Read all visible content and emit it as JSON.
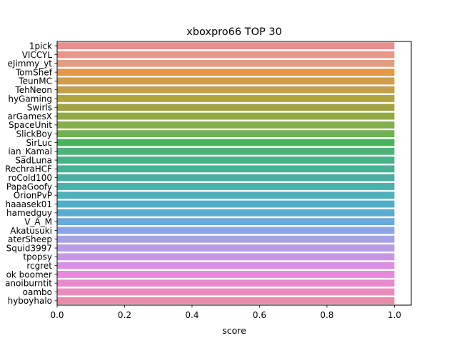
{
  "chart_data": {
    "type": "bar",
    "orientation": "horizontal",
    "title": "xboxpro66 TOP 30",
    "xlabel": "score",
    "ylabel": "",
    "xlim": [
      0,
      1.05
    ],
    "xticks": [
      "0.0",
      "0.2",
      "0.4",
      "0.6",
      "0.8",
      "1.0"
    ],
    "grid": false,
    "categories": [
      "1pick",
      "VICCYL",
      "eJimmy_yt",
      "TomShef",
      "TeunMC",
      "TehNeon",
      "hyGaming",
      "Swirls",
      "arGamesX",
      "SpaceUnit",
      "SlickBoy",
      "SirLuc",
      "ian_Kamal",
      "SadLuna",
      "RechraHCF",
      "roCold100",
      "PapaGoofy",
      "OrionPvP",
      "haaasek01",
      "hamedguy",
      "V_A_M",
      "Akatusuki",
      "aterSheep",
      "Squid3997",
      "tpopsy",
      "rcgret",
      "ok boomer",
      "anoiburntit",
      "oambo",
      "hyboyhalo"
    ],
    "values": [
      1,
      1,
      1,
      1,
      1,
      1,
      1,
      1,
      1,
      1,
      1,
      1,
      1,
      1,
      1,
      1,
      1,
      1,
      1,
      1,
      1,
      1,
      1,
      1,
      1,
      1,
      1,
      1,
      1,
      1
    ],
    "colors": [
      "#e98e91",
      "#e8988a",
      "#e59c7e",
      "#e0984e",
      "#d19b4e",
      "#c39f46",
      "#b0a344",
      "#a2a444",
      "#93aa44",
      "#84ae48",
      "#70b250",
      "#47b35c",
      "#49b37a",
      "#4ab287",
      "#4ab094",
      "#4baea2",
      "#4cafab",
      "#4eb0b9",
      "#52aec8",
      "#58abd2",
      "#6aa9de",
      "#8aa5e3",
      "#a7a1e6",
      "#b89ce6",
      "#c797e4",
      "#dc8ee3",
      "#e48adb",
      "#e78bcd",
      "#e98cbb",
      "#e98ca7"
    ]
  }
}
